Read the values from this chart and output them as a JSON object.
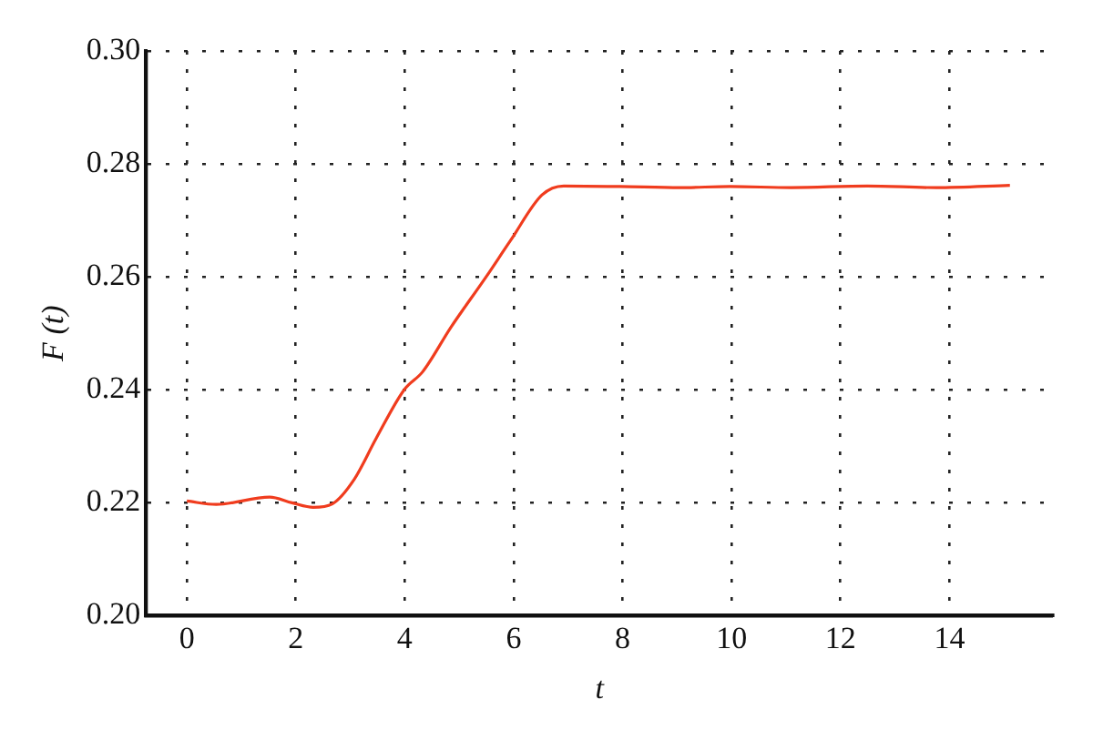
{
  "chart_data": {
    "type": "line",
    "xlabel": "t",
    "ylabel": "F (t)",
    "xlim": [
      -0.75,
      15.9
    ],
    "xticks": [
      0,
      2,
      4,
      6,
      8,
      10,
      12,
      14
    ],
    "ylim": [
      0.2,
      0.3
    ],
    "yticks": [
      {
        "value": 0.2,
        "label": "0.20"
      },
      {
        "value": 0.22,
        "label": "0.22"
      },
      {
        "value": 0.24,
        "label": "0.24"
      },
      {
        "value": 0.26,
        "label": "0.26"
      },
      {
        "value": 0.28,
        "label": "0.28"
      },
      {
        "value": 0.3,
        "label": "0.30"
      }
    ],
    "grid": true,
    "line_style": "solid",
    "marker": "none",
    "series": [
      {
        "color": "#f03c1e",
        "x": [
          0,
          0.54,
          1.52,
          1.93,
          2.32,
          2.67,
          3.07,
          3.47,
          3.99,
          4.33,
          4.85,
          5.48,
          5.94,
          6.52,
          6.92,
          7.95,
          9.05,
          9.97,
          11.1,
          12.49,
          13.76,
          15.11
        ],
        "values": [
          0.2203,
          0.2197,
          0.221,
          0.22,
          0.2192,
          0.2198,
          0.2241,
          0.2313,
          0.24,
          0.2432,
          0.2511,
          0.2598,
          0.2664,
          0.2745,
          0.2761,
          0.276,
          0.2758,
          0.276,
          0.2758,
          0.2761,
          0.2758,
          0.2762
        ]
      }
    ]
  }
}
